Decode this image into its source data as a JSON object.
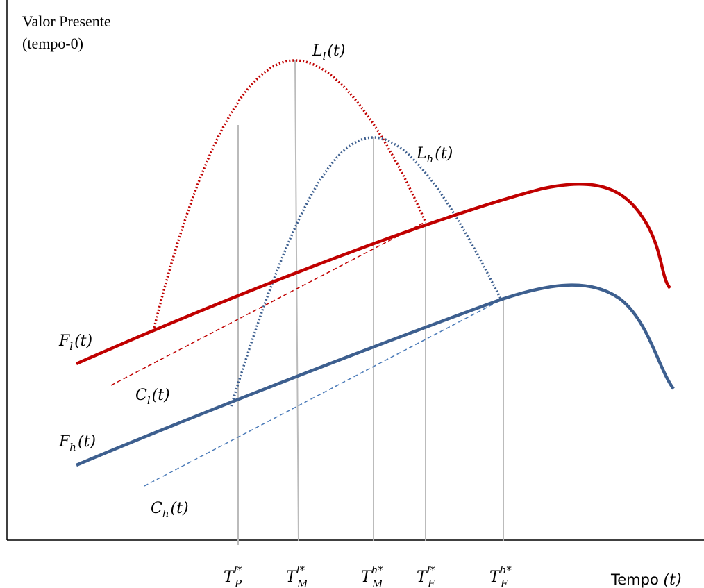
{
  "y_axis": {
    "title_line1": "Valor Presente",
    "title_line2": "(tempo-0)"
  },
  "x_axis": {
    "title": "Tempo",
    "title_arg": "(t)"
  },
  "curves": [
    {
      "base": "L",
      "sub": "l",
      "arg": "(t)"
    },
    {
      "base": "L",
      "sub": "h",
      "arg": "(t)"
    },
    {
      "base": "F",
      "sub": "l",
      "arg": "(t)"
    },
    {
      "base": "C",
      "sub": "l",
      "arg": "(t)"
    },
    {
      "base": "F",
      "sub": "h",
      "arg": "(t)"
    },
    {
      "base": "C",
      "sub": "h",
      "arg": "(t)"
    }
  ],
  "ticks": [
    {
      "base": "T",
      "sub": "P",
      "sup": "l*"
    },
    {
      "base": "T",
      "sub": "M",
      "sup": "l*"
    },
    {
      "base": "T",
      "sub": "M",
      "sup": "h*"
    },
    {
      "base": "T",
      "sub": "F",
      "sup": "l*"
    },
    {
      "base": "T",
      "sub": "F",
      "sup": "h*"
    }
  ]
}
